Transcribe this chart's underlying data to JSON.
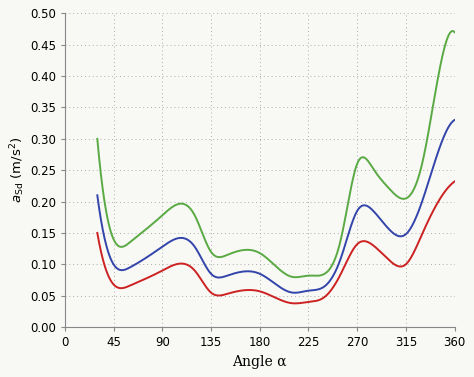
{
  "xlabel": "Angle α",
  "xlim": [
    0,
    360
  ],
  "ylim": [
    0.0,
    0.5
  ],
  "xticks": [
    0,
    45,
    90,
    135,
    180,
    225,
    270,
    315,
    360
  ],
  "yticks": [
    0.0,
    0.05,
    0.1,
    0.15,
    0.2,
    0.25,
    0.3,
    0.35,
    0.4,
    0.45,
    0.5
  ],
  "key_angles": [
    30,
    45,
    60,
    90,
    120,
    135,
    150,
    180,
    210,
    225,
    240,
    255,
    270,
    285,
    300,
    315,
    330,
    345,
    360
  ],
  "green_key": [
    0.3,
    0.14,
    0.135,
    0.178,
    0.178,
    0.12,
    0.115,
    0.118,
    0.08,
    0.082,
    0.085,
    0.14,
    0.26,
    0.252,
    0.22,
    0.205,
    0.26,
    0.4,
    0.47
  ],
  "blue_key": [
    0.21,
    0.1,
    0.095,
    0.128,
    0.128,
    0.085,
    0.082,
    0.085,
    0.055,
    0.058,
    0.065,
    0.11,
    0.185,
    0.185,
    0.155,
    0.148,
    0.2,
    0.28,
    0.33
  ],
  "red_key": [
    0.15,
    0.068,
    0.066,
    0.09,
    0.09,
    0.055,
    0.053,
    0.057,
    0.038,
    0.04,
    0.048,
    0.085,
    0.132,
    0.13,
    0.106,
    0.1,
    0.148,
    0.2,
    0.232
  ],
  "green_color": "#5aaa44",
  "blue_color": "#3344aa",
  "red_color": "#cc2222",
  "background_color": "#f8f8f5",
  "grid_color": "#999999",
  "linewidth": 1.4
}
